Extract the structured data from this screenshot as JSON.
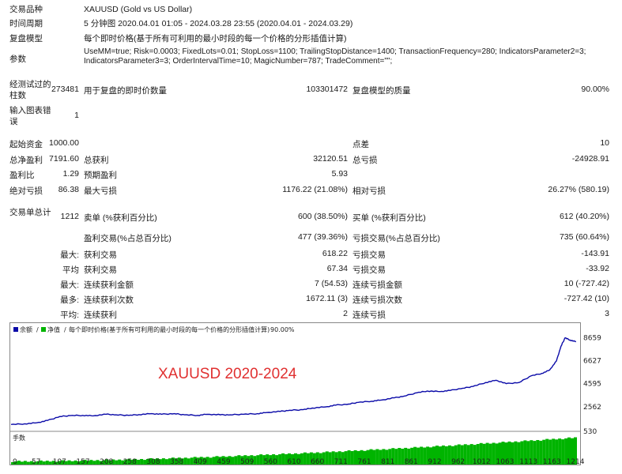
{
  "report": {
    "rows": [
      {
        "label": "交易品种",
        "value": "XAUUSD (Gold vs US Dollar)"
      },
      {
        "label": "时间周期",
        "value": "5 分钟图 2020.04.01 01:05 - 2024.03.28 23:55 (2020.04.01 - 2024.03.29)"
      },
      {
        "label": "复盘模型",
        "value": "每个即时价格(基于所有可利用的最小时段的每一个价格的分形插值计算)"
      }
    ],
    "params_label": "参数",
    "params_text": "UseMM=true; Risk=0.0003; FixedLots=0.01; StopLoss=1100; TrailingStopDistance=1400; TransactionFrequency=280; IndicatorsParameter2=3; IndicatorsParameter3=3; OrderIntervalTime=10; MagicNumber=787; TradeComment=\"\";",
    "bars_label": "经测试过的柱数",
    "bars_value": "273481",
    "ticks_label": "用于复盘的即时价数量",
    "ticks_value": "103301472",
    "quality_label": "复盘模型的质量",
    "quality_value": "90.00%",
    "chart_err_label": "输入图表错误",
    "chart_err_value": "1",
    "deposit_label": "起始资金",
    "deposit_value": "1000.00",
    "spread_label": "点差",
    "spread_value": "10",
    "net_label": "总净盈利",
    "net_value": "7191.60",
    "gross_profit_label": "总获利",
    "gross_profit_value": "32120.51",
    "gross_loss_label": "总亏损",
    "gross_loss_value": "-24928.91",
    "pf_label": "盈利比",
    "pf_value": "1.29",
    "exp_label": "预期盈利",
    "exp_value": "5.93",
    "abs_dd_label": "绝对亏损",
    "abs_dd_value": "86.38",
    "max_dd_label": "最大亏损",
    "max_dd_value": "1176.22 (21.08%)",
    "rel_dd_label": "相对亏损",
    "rel_dd_value": "26.27% (580.19)",
    "total_trades_label": "交易单总计",
    "total_trades_value": "1212",
    "short_label": "卖单 (%获利百分比)",
    "short_value": "600 (38.50%)",
    "long_label": "买单 (%获利百分比)",
    "long_value": "612 (40.20%)",
    "win_label": "盈利交易(%占总百分比)",
    "win_value": "477 (39.36%)",
    "loss_label": "亏损交易(%占总百分比)",
    "loss_value": "735 (60.64%)",
    "max_prefix": "最大:",
    "avg_prefix": "平均",
    "max_prefix2": "最大:",
    "most_prefix": "最多:",
    "avg_prefix2": "平均:",
    "largest_win_label": "获利交易",
    "largest_win_value": "618.22",
    "largest_loss_label": "亏损交易",
    "largest_loss_value": "-143.91",
    "avg_win_label": "获利交易",
    "avg_win_value": "67.34",
    "avg_loss_label": "亏损交易",
    "avg_loss_value": "-33.92",
    "max_cons_win_label": "连续获利金额",
    "max_cons_win_value": "7 (54.53)",
    "max_cons_loss_label": "连续亏损金额",
    "max_cons_loss_value": "10 (-727.42)",
    "most_cons_win_label": "连续获利次数",
    "most_cons_win_value": "1672.11 (3)",
    "most_cons_loss_label": "连续亏损次数",
    "most_cons_loss_value": "-727.42 (10)",
    "avg_cons_win_label": "连续获利",
    "avg_cons_win_value": "2",
    "avg_cons_loss_label": "连续亏损",
    "avg_cons_loss_value": "3"
  },
  "chart_data": {
    "type": "line",
    "header": "余额 / 净值 / 每个即时价格(基于所有可利用的最小时段的每一个价格的分形插值计算) / 90.00%",
    "header_parts": [
      "余额",
      "净值",
      "每个即时价格(基于所有可利用的最小时段的每一个价格的分形插值计算)",
      "90.00%"
    ],
    "watermark": "XAUUSD 2020-2024",
    "volume_label": "手数",
    "ylim": [
      530,
      8900
    ],
    "y_ticks": [
      "8659",
      "6627",
      "4595",
      "2562",
      "530"
    ],
    "y_tick_values": [
      8659,
      6627,
      4595,
      2562,
      530
    ],
    "x_ticks": [
      "0",
      "57",
      "107",
      "157",
      "208",
      "258",
      "308",
      "358",
      "409",
      "459",
      "509",
      "560",
      "610",
      "660",
      "711",
      "761",
      "811",
      "861",
      "912",
      "962",
      "1012",
      "1063",
      "1113",
      "1163",
      "1214"
    ],
    "xlim": [
      0,
      1240
    ],
    "series": [
      {
        "values": [
          [
            0,
            1000
          ],
          [
            30,
            1050
          ],
          [
            57,
            1150
          ],
          [
            80,
            1350
          ],
          [
            107,
            1700
          ],
          [
            130,
            1780
          ],
          [
            157,
            1800
          ],
          [
            180,
            1760
          ],
          [
            208,
            1900
          ],
          [
            230,
            1850
          ],
          [
            258,
            1800
          ],
          [
            280,
            1870
          ],
          [
            308,
            1950
          ],
          [
            330,
            1900
          ],
          [
            358,
            1950
          ],
          [
            380,
            1850
          ],
          [
            409,
            1800
          ],
          [
            430,
            1900
          ],
          [
            459,
            1850
          ],
          [
            480,
            1850
          ],
          [
            509,
            1900
          ],
          [
            540,
            1950
          ],
          [
            560,
            2050
          ],
          [
            590,
            2150
          ],
          [
            610,
            2250
          ],
          [
            640,
            2300
          ],
          [
            660,
            2450
          ],
          [
            690,
            2550
          ],
          [
            711,
            2700
          ],
          [
            740,
            2800
          ],
          [
            761,
            2950
          ],
          [
            790,
            3050
          ],
          [
            811,
            3150
          ],
          [
            840,
            3350
          ],
          [
            861,
            3500
          ],
          [
            890,
            3800
          ],
          [
            912,
            3950
          ],
          [
            940,
            3900
          ],
          [
            962,
            4000
          ],
          [
            990,
            4200
          ],
          [
            1012,
            4350
          ],
          [
            1040,
            4700
          ],
          [
            1063,
            4900
          ],
          [
            1085,
            4600
          ],
          [
            1113,
            4700
          ],
          [
            1140,
            5300
          ],
          [
            1163,
            5500
          ],
          [
            1180,
            5800
          ],
          [
            1195,
            6600
          ],
          [
            1205,
            7900
          ],
          [
            1214,
            8650
          ],
          [
            1225,
            8450
          ],
          [
            1238,
            8300
          ]
        ]
      }
    ],
    "colors": {
      "balance": "#0a0aa8",
      "volume": "#00b400",
      "watermark": "#e03030"
    }
  }
}
